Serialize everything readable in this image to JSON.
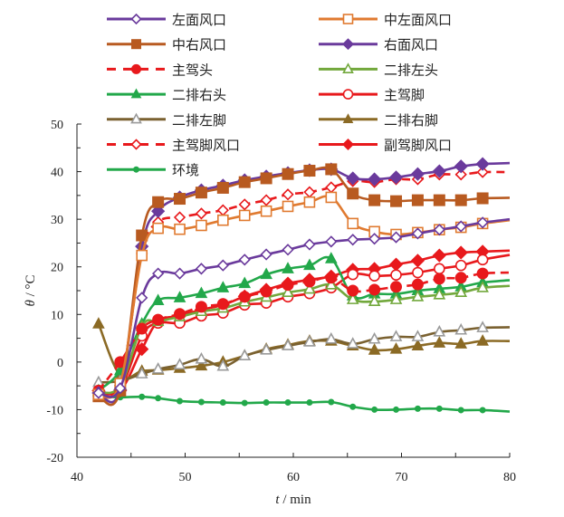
{
  "chart_data": {
    "type": "line",
    "title": "",
    "xlabel": "t / min",
    "xlabel_italic": "t",
    "xlabel_unit": " / min",
    "ylabel": "θ / °C",
    "ylabel_italic": "θ",
    "ylabel_unit": " / °C",
    "xlim": [
      40,
      80
    ],
    "ylim": [
      -20,
      50
    ],
    "xticks": [
      40,
      50,
      60,
      70,
      80
    ],
    "yticks": [
      -20,
      -10,
      0,
      10,
      20,
      30,
      40,
      50
    ],
    "grid": false,
    "legend_position": "top",
    "x": [
      42,
      44,
      46,
      47.5,
      49.5,
      51.5,
      53.5,
      55.5,
      57.5,
      59.5,
      61.5,
      63.5,
      65.5,
      67.5,
      69.5,
      71.5,
      73.5,
      75.5,
      77.5
    ],
    "x_end": 80,
    "series": [
      {
        "name": "左面风口",
        "color": "#6a3a9c",
        "dash": false,
        "marker": "diamond",
        "filled": false,
        "values": [
          -6.5,
          -5.5,
          13.5,
          18.6,
          18.6,
          19.6,
          20.3,
          21.5,
          22.6,
          23.6,
          24.7,
          25.3,
          25.7,
          25.9,
          26.2,
          27.0,
          27.8,
          28.5,
          29.3
        ],
        "end": 30.0
      },
      {
        "name": "中左面风口",
        "color": "#e07a30",
        "dash": false,
        "marker": "square",
        "filled": false,
        "values": [
          -6.8,
          -4.5,
          22.4,
          28.1,
          27.9,
          28.7,
          29.8,
          30.8,
          31.7,
          32.7,
          33.6,
          34.6,
          29.1,
          27.4,
          26.8,
          27.2,
          27.8,
          28.3,
          29.1
        ],
        "end": 29.8
      },
      {
        "name": "中右风口",
        "color": "#b85a20",
        "dash": false,
        "marker": "square",
        "filled": true,
        "values": [
          -7.2,
          -6.0,
          26.6,
          33.6,
          34.3,
          35.6,
          36.6,
          37.8,
          38.6,
          39.5,
          40.2,
          40.5,
          35.4,
          34.0,
          33.8,
          34.0,
          34.0,
          34.0,
          34.4
        ],
        "end": 34.5
      },
      {
        "name": "右面风口",
        "color": "#6a3a9c",
        "dash": false,
        "marker": "diamond",
        "filled": true,
        "values": [
          -6.5,
          -5.8,
          24.3,
          31.7,
          34.6,
          36.1,
          37.1,
          38.2,
          39.0,
          39.7,
          40.3,
          40.5,
          38.6,
          38.4,
          38.8,
          39.5,
          40.1,
          41.1,
          41.6
        ],
        "end": 41.8
      },
      {
        "name": "主驾头",
        "color": "#e8191c",
        "dash": true,
        "marker": "circle",
        "filled": true,
        "values": [
          -6.0,
          0.0,
          7.0,
          8.9,
          10.1,
          11.6,
          12.2,
          13.7,
          14.8,
          16.2,
          16.9,
          17.7,
          15.0,
          15.2,
          15.8,
          16.3,
          17.5,
          17.7,
          18.6
        ],
        "end": 18.8
      },
      {
        "name": "二排左头",
        "color": "#72a83c",
        "dash": false,
        "marker": "triangle",
        "filled": false,
        "values": [
          -6.3,
          -5.0,
          7.5,
          8.5,
          9.5,
          10.6,
          11.3,
          12.6,
          13.6,
          14.6,
          15.3,
          16.2,
          13.1,
          12.7,
          13.1,
          13.7,
          14.1,
          14.6,
          15.6
        ],
        "end": 16.0
      },
      {
        "name": "二排右头",
        "color": "#22a84a",
        "dash": false,
        "marker": "triangle",
        "filled": true,
        "values": [
          -6.0,
          -1.8,
          8.0,
          12.9,
          13.5,
          14.4,
          15.6,
          16.5,
          18.4,
          19.6,
          20.3,
          21.7,
          13.9,
          14.3,
          14.3,
          15.0,
          15.4,
          15.8,
          16.7
        ],
        "end": 17.2
      },
      {
        "name": "主驾脚",
        "color": "#e8191c",
        "dash": false,
        "marker": "circle",
        "filled": false,
        "values": [
          -6.6,
          -5.5,
          5.5,
          8.2,
          8.2,
          9.7,
          10.3,
          12.0,
          12.4,
          13.7,
          14.4,
          15.6,
          18.4,
          18.1,
          18.3,
          18.8,
          19.6,
          20.3,
          21.5
        ],
        "end": 22.5
      },
      {
        "name": "二排左脚",
        "color": "#7a6130",
        "dash": false,
        "marker": "triangle",
        "filled": false,
        "values": [
          -4.3,
          -4.0,
          -2.5,
          -1.5,
          -0.6,
          0.6,
          -0.9,
          1.3,
          2.5,
          3.4,
          4.2,
          4.8,
          3.8,
          4.8,
          5.3,
          5.3,
          6.3,
          6.7,
          7.2
        ],
        "end": 7.3
      },
      {
        "name": "二排右脚",
        "color": "#8b6a25",
        "dash": false,
        "marker": "triangle",
        "filled": true,
        "values": [
          8.0,
          -2.8,
          -1.9,
          -1.7,
          -1.3,
          -0.8,
          0.0,
          1.3,
          2.7,
          3.6,
          4.4,
          4.4,
          3.4,
          2.5,
          2.7,
          3.4,
          4.0,
          3.8,
          4.4
        ],
        "end": 4.4
      },
      {
        "name": "主驾脚风口",
        "color": "#e8191c",
        "dash": true,
        "marker": "diamond",
        "filled": false,
        "values": [
          -6.2,
          -4.5,
          22.8,
          29.4,
          30.4,
          31.2,
          31.9,
          33.1,
          34.0,
          35.2,
          35.7,
          36.7,
          38.0,
          37.8,
          38.4,
          38.4,
          39.4,
          39.4,
          39.9
        ],
        "end": 39.9
      },
      {
        "name": "副驾脚风口",
        "color": "#e8191c",
        "dash": false,
        "marker": "diamond",
        "filled": true,
        "values": [
          -6.0,
          -6.0,
          2.7,
          8.5,
          9.7,
          11.0,
          12.0,
          13.8,
          15.2,
          16.5,
          17.3,
          18.0,
          19.4,
          19.6,
          20.5,
          21.3,
          22.4,
          23.0,
          23.2
        ],
        "end": 23.4
      },
      {
        "name": "环境",
        "color": "#22a84a",
        "dash": false,
        "marker": "dot",
        "filled": true,
        "values": [
          -7.2,
          -7.4,
          -7.3,
          -7.6,
          -8.2,
          -8.4,
          -8.5,
          -8.6,
          -8.5,
          -8.5,
          -8.5,
          -8.4,
          -9.4,
          -10.0,
          -10.0,
          -9.8,
          -9.8,
          -10.1,
          -10.1
        ],
        "end": -10.4
      }
    ]
  }
}
